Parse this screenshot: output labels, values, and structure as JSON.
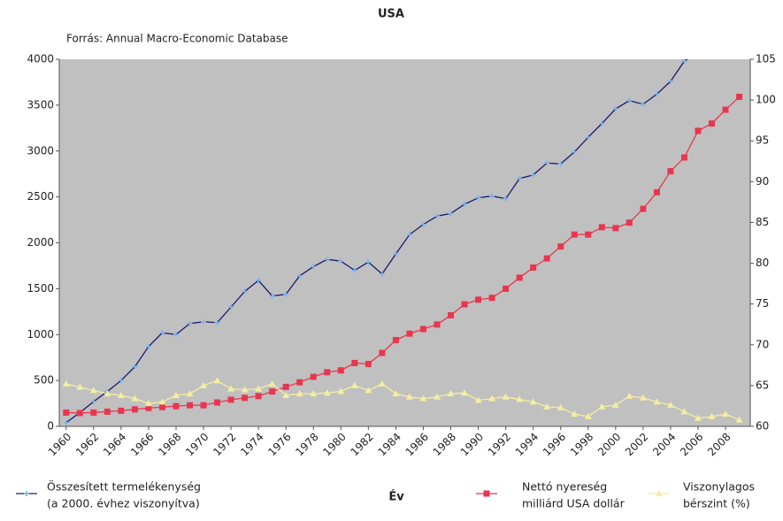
{
  "chart_data": {
    "type": "line",
    "title": "USA",
    "subtitle": "Forrás: Annual Macro-Economic Database",
    "x_label": "Év",
    "x": [
      1960,
      1961,
      1962,
      1963,
      1964,
      1965,
      1966,
      1967,
      1968,
      1969,
      1970,
      1971,
      1972,
      1973,
      1974,
      1975,
      1976,
      1977,
      1978,
      1979,
      1980,
      1981,
      1982,
      1983,
      1984,
      1985,
      1986,
      1987,
      1988,
      1989,
      1990,
      1991,
      1992,
      1993,
      1994,
      1995,
      1996,
      1997,
      1998,
      1999,
      2000,
      2001,
      2002,
      2003,
      2004,
      2005,
      2006,
      2007,
      2008,
      2009
    ],
    "xlim": [
      1959.5,
      2009.8
    ],
    "xticks": [
      1960,
      1962,
      1964,
      1966,
      1968,
      1970,
      1972,
      1974,
      1976,
      1978,
      1980,
      1982,
      1984,
      1986,
      1988,
      1990,
      1992,
      1994,
      1996,
      1998,
      2000,
      2002,
      2004,
      2006,
      2008
    ],
    "ylim": [
      0,
      4000
    ],
    "yticks": [
      0,
      500,
      1000,
      1500,
      2000,
      2500,
      3000,
      3500,
      4000
    ],
    "y2lim": [
      60,
      105
    ],
    "y2ticks": [
      60,
      65,
      70,
      75,
      80,
      85,
      90,
      95,
      100,
      105
    ],
    "plot_background": "#c0c0c0",
    "series": [
      {
        "name": [
          "Összesített termelékenység",
          "(a 2000. évhez viszonyítva)"
        ],
        "color": "#1a1a6e",
        "marker_color": "#7fb2e5",
        "marker": "plus",
        "values": [
          40,
          150,
          270,
          380,
          500,
          650,
          870,
          1020,
          1000,
          1120,
          1140,
          1130,
          1300,
          1470,
          1590,
          1420,
          1440,
          1640,
          1740,
          1820,
          1800,
          1700,
          1790,
          1660,
          1880,
          2090,
          2200,
          2290,
          2320,
          2420,
          2490,
          2510,
          2480,
          2700,
          2740,
          2870,
          2860,
          2990,
          3150,
          3300,
          3460,
          3550,
          3510,
          3620,
          3760,
          3980,
          4080,
          null,
          null,
          null
        ]
      },
      {
        "name": [
          "Nettó nyereség",
          "milliárd USA dollár"
        ],
        "color": "#e8364f",
        "marker_color": "#e8364f",
        "marker": "square",
        "values": [
          150,
          145,
          150,
          160,
          170,
          185,
          200,
          210,
          220,
          230,
          230,
          260,
          290,
          310,
          330,
          380,
          430,
          480,
          540,
          590,
          610,
          690,
          680,
          800,
          940,
          1010,
          1060,
          1110,
          1210,
          1330,
          1380,
          1400,
          1500,
          1620,
          1730,
          1830,
          1960,
          2090,
          2090,
          2170,
          2160,
          2220,
          2370,
          2550,
          2780,
          2930,
          3220,
          3300,
          3450,
          3590
        ]
      },
      {
        "name": [
          "Viszonylagos",
          "bérszint (%)"
        ],
        "color": "#f3eea0",
        "marker_color": "#f3eea0",
        "marker": "triangle",
        "axis": "y2",
        "values": [
          65.2,
          64.8,
          64.4,
          64,
          63.8,
          63.4,
          62.8,
          63,
          63.8,
          64,
          65,
          65.6,
          64.6,
          64.5,
          64.6,
          65.2,
          63.8,
          64,
          64,
          64.1,
          64.3,
          65,
          64.4,
          65.2,
          64,
          63.6,
          63.4,
          63.6,
          64,
          64.1,
          63.2,
          63.4,
          63.6,
          63.3,
          63,
          62.4,
          62.3,
          61.5,
          61.2,
          62.4,
          62.6,
          63.7,
          63.5,
          63,
          62.6,
          61.8,
          61,
          61.2,
          61.5,
          60.8
        ]
      }
    ]
  }
}
